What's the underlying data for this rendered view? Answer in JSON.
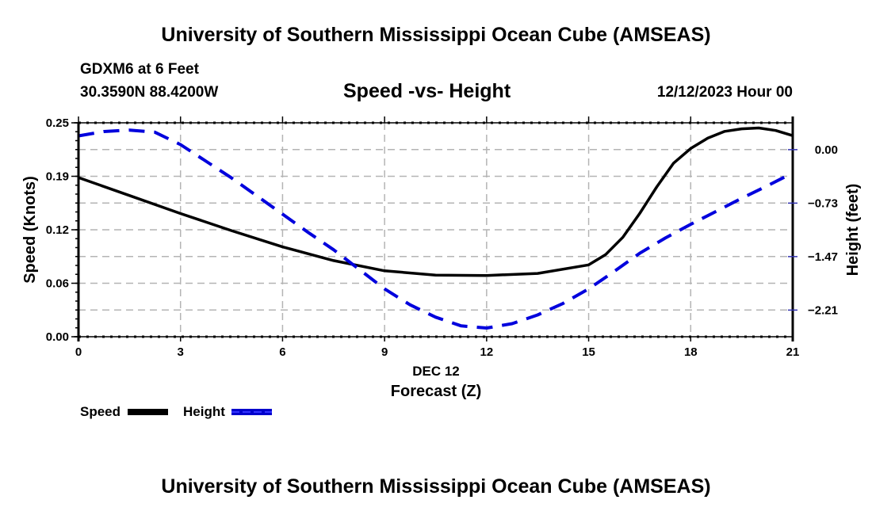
{
  "header": {
    "main_title": "University of Southern Mississippi Ocean Cube (AMSEAS)",
    "station_line": "GDXM6 at 6 Feet",
    "coords_line": "30.3590N  88.4200W",
    "plot_title": "Speed -vs- Height",
    "datetime": "12/12/2023 Hour 00"
  },
  "footer": {
    "main_title": "University of Southern Mississippi Ocean Cube (AMSEAS)"
  },
  "chart_data": {
    "type": "line",
    "title": "Speed -vs- Height",
    "xlabel": "Forecast (Z)",
    "xsublabel": "DEC 12",
    "ylabel": "Speed (Knots)",
    "y2label": "Height (feet)",
    "x_ticks": [
      0,
      3,
      6,
      9,
      12,
      15,
      18,
      21
    ],
    "x_tick_labels": [
      "0",
      "3",
      "6",
      "9",
      "12",
      "15",
      "18",
      "21"
    ],
    "xlim": [
      0,
      21
    ],
    "y_ticks": [
      0.0,
      0.0625,
      0.125,
      0.1875,
      0.25
    ],
    "y_tick_labels": [
      "0.00",
      "0.06",
      "0.12",
      "0.19",
      "0.25"
    ],
    "ylim": [
      0,
      0.25
    ],
    "y2_ticks": [
      0.0,
      -0.7375,
      -1.475,
      -2.2125
    ],
    "y2_tick_labels": [
      "0.00",
      "−0.73",
      "−1.47",
      "−2.21"
    ],
    "y2lim": [
      -2.58,
      0.37
    ],
    "grid": true,
    "legend_position": "bottom-left",
    "series": [
      {
        "name": "Speed",
        "axis": "left",
        "color": "#000000",
        "style": "solid",
        "x": [
          0,
          1.5,
          3,
          4.5,
          6,
          7.5,
          9,
          10.5,
          12,
          13.5,
          15,
          15.5,
          16,
          16.5,
          17,
          17.5,
          18,
          18.5,
          19,
          19.5,
          20,
          20.5,
          21
        ],
        "values": [
          0.186,
          0.165,
          0.144,
          0.124,
          0.105,
          0.089,
          0.077,
          0.072,
          0.0716,
          0.074,
          0.084,
          0.096,
          0.116,
          0.144,
          0.175,
          0.203,
          0.22,
          0.232,
          0.24,
          0.243,
          0.244,
          0.241,
          0.235
        ]
      },
      {
        "name": "Height",
        "axis": "right",
        "color": "#0000dd",
        "style": "dashed",
        "x": [
          0,
          0.75,
          1.5,
          2.25,
          3,
          3.75,
          4.5,
          5.25,
          6,
          6.75,
          7.5,
          8.25,
          9,
          9.75,
          10.5,
          11.25,
          12,
          12.75,
          13.5,
          14.25,
          15,
          15.75,
          16.5,
          17.25,
          18,
          18.75,
          19.5,
          20.25,
          21
        ],
        "values": [
          0.19,
          0.25,
          0.27,
          0.24,
          0.07,
          -0.16,
          -0.39,
          -0.64,
          -0.89,
          -1.14,
          -1.38,
          -1.65,
          -1.92,
          -2.14,
          -2.31,
          -2.43,
          -2.46,
          -2.4,
          -2.28,
          -2.12,
          -1.92,
          -1.68,
          -1.43,
          -1.22,
          -1.03,
          -0.85,
          -0.67,
          -0.5,
          -0.32
        ]
      }
    ]
  }
}
